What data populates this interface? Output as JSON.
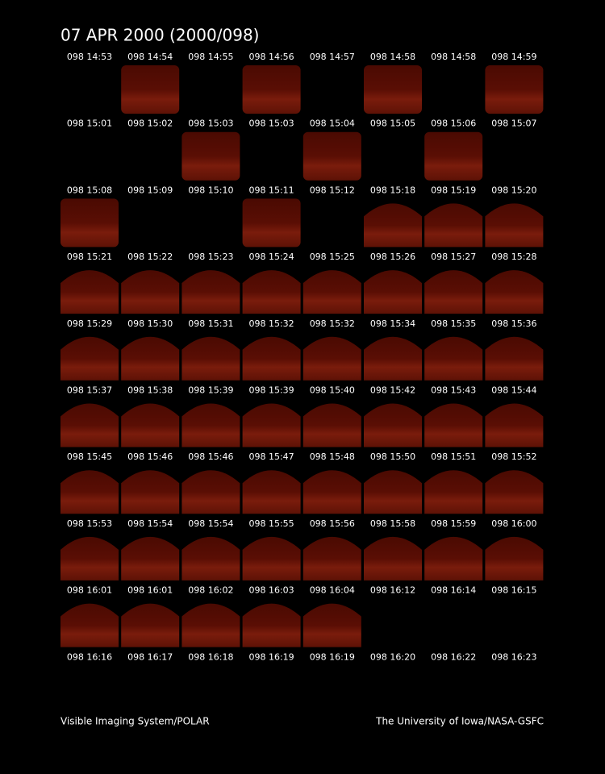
{
  "header": {
    "title": "07 APR 2000  (2000/098)"
  },
  "grid": {
    "rows": [
      [
        "098 14:53",
        "098 14:54",
        "098 14:55",
        "098 14:56",
        "098 14:57",
        "098 14:58",
        "098 14:58",
        "098 14:59"
      ],
      [
        "098 15:01",
        "098 15:02",
        "098 15:03",
        "098 15:03",
        "098 15:04",
        "098 15:05",
        "098 15:06",
        "098 15:07"
      ],
      [
        "098 15:08",
        "098 15:09",
        "098 15:10",
        "098 15:11",
        "098 15:12",
        "098 15:18",
        "098 15:19",
        "098 15:20"
      ],
      [
        "098 15:21",
        "098 15:22",
        "098 15:23",
        "098 15:24",
        "098 15:25",
        "098 15:26",
        "098 15:27",
        "098 15:28"
      ],
      [
        "098 15:29",
        "098 15:30",
        "098 15:31",
        "098 15:32",
        "098 15:32",
        "098 15:34",
        "098 15:35",
        "098 15:36"
      ],
      [
        "098 15:37",
        "098 15:38",
        "098 15:39",
        "098 15:39",
        "098 15:40",
        "098 15:42",
        "098 15:43",
        "098 15:44"
      ],
      [
        "098 15:45",
        "098 15:46",
        "098 15:46",
        "098 15:47",
        "098 15:48",
        "098 15:50",
        "098 15:51",
        "098 15:52"
      ],
      [
        "098 15:53",
        "098 15:54",
        "098 15:54",
        "098 15:55",
        "098 15:56",
        "098 15:58",
        "098 15:59",
        "098 16:00"
      ],
      [
        "098 16:01",
        "098 16:01",
        "098 16:02",
        "098 16:03",
        "098 16:04",
        "098 16:12",
        "098 16:14",
        "098 16:15"
      ],
      [
        "098 16:16",
        "098 16:17",
        "098 16:18",
        "098 16:19",
        "098 16:19",
        "098 16:20",
        "098 16:22",
        "098 16:23"
      ]
    ]
  },
  "footer": {
    "left": "Visible Imaging System/POLAR",
    "right": "The University of Iowa/NASA-GSFC"
  }
}
